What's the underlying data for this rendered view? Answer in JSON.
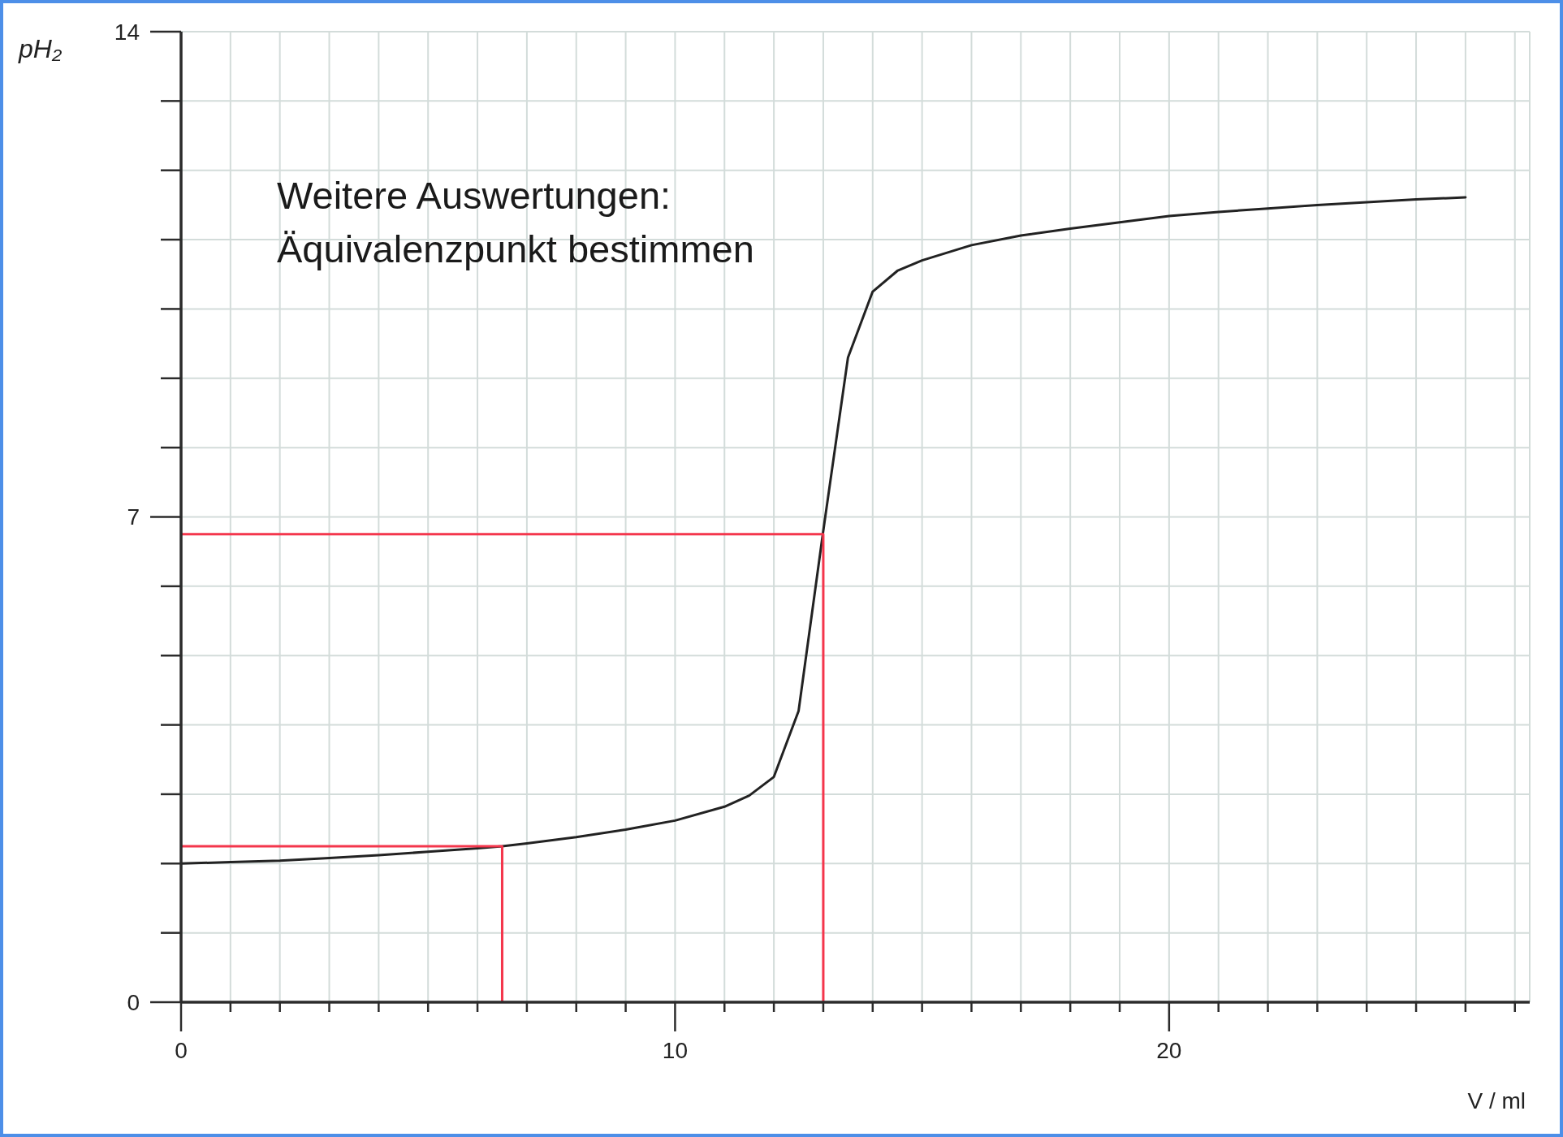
{
  "chart_data": {
    "type": "line",
    "xlabel": "V / ml",
    "ylabel": "pH₂",
    "annotations": [
      "Weitere Auswertungen:",
      "Äquivalenzpunkt bestimmen"
    ],
    "xlim": [
      0,
      27.3
    ],
    "xticks": [
      0,
      {
        "value": 1,
        "label": null
      },
      {
        "value": 2,
        "label": null
      },
      {
        "value": 3,
        "label": null
      },
      {
        "value": 4,
        "label": null
      },
      {
        "value": 5,
        "label": null
      },
      {
        "value": 6,
        "label": null
      },
      {
        "value": 7,
        "label": null
      },
      {
        "value": 8,
        "label": null
      },
      {
        "value": 9,
        "label": null
      },
      10,
      {
        "value": 11,
        "label": null
      },
      {
        "value": 12,
        "label": null
      },
      {
        "value": 13,
        "label": null
      },
      {
        "value": 14,
        "label": null
      },
      {
        "value": 15,
        "label": null
      },
      {
        "value": 16,
        "label": null
      },
      {
        "value": 17,
        "label": null
      },
      {
        "value": 18,
        "label": null
      },
      {
        "value": 19,
        "label": null
      },
      20,
      {
        "value": 21,
        "label": null
      },
      {
        "value": 22,
        "label": null
      },
      {
        "value": 23,
        "label": null
      },
      {
        "value": 24,
        "label": null
      },
      {
        "value": 25,
        "label": null
      },
      {
        "value": 26,
        "label": null
      },
      {
        "value": 27,
        "label": null
      }
    ],
    "ylim": [
      0,
      14
    ],
    "yticks": [
      0,
      {
        "value": 1,
        "label": null
      },
      {
        "value": 2,
        "label": null
      },
      {
        "value": 3,
        "label": null
      },
      {
        "value": 4,
        "label": null
      },
      {
        "value": 5,
        "label": null
      },
      {
        "value": 6,
        "label": null
      },
      7,
      {
        "value": 8,
        "label": null
      },
      {
        "value": 9,
        "label": null
      },
      {
        "value": 10,
        "label": null
      },
      {
        "value": 11,
        "label": null
      },
      {
        "value": 12,
        "label": null
      },
      {
        "value": 13,
        "label": null
      },
      14
    ],
    "grid": true,
    "marker": "none",
    "line_style": "solid",
    "series": [
      {
        "color": "#222222",
        "x": [
          0,
          1,
          2,
          3,
          4,
          5,
          6,
          6.5,
          7,
          8,
          9,
          10,
          11,
          11.5,
          12,
          12.5,
          13,
          13.5,
          14,
          14.5,
          15,
          16,
          17,
          18,
          19,
          20,
          21,
          22,
          23,
          24,
          25,
          26
        ],
        "values": [
          2.0,
          2.02,
          2.04,
          2.08,
          2.12,
          2.17,
          2.22,
          2.25,
          2.29,
          2.38,
          2.49,
          2.62,
          2.82,
          2.98,
          3.25,
          4.2,
          6.8,
          9.3,
          10.25,
          10.55,
          10.7,
          10.92,
          11.06,
          11.16,
          11.25,
          11.34,
          11.4,
          11.45,
          11.5,
          11.54,
          11.58,
          11.61
        ]
      },
      {
        "color": "#f4364c",
        "x": [
          0,
          6.5,
          6.5
        ],
        "values": [
          2.25,
          2.25,
          0
        ]
      },
      {
        "color": "#f4364c",
        "x": [
          0,
          13,
          13
        ],
        "values": [
          6.75,
          6.75,
          0
        ]
      }
    ]
  }
}
